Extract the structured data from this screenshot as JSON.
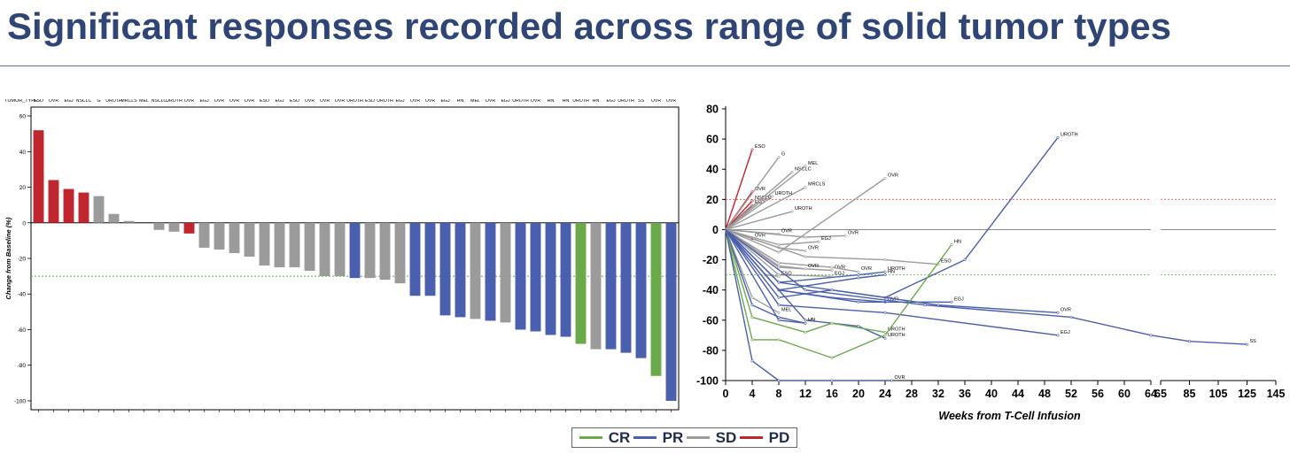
{
  "slide": {
    "title": "Significant responses recorded across range of solid tumor types"
  },
  "colors": {
    "CR": "#6aaa4a",
    "PR": "#4a5fae",
    "SD": "#9b9b9b",
    "PD": "#c0262e"
  },
  "legend": {
    "items": [
      {
        "key": "CR",
        "label": "CR"
      },
      {
        "key": "PR",
        "label": "PR"
      },
      {
        "key": "SD",
        "label": "SD"
      },
      {
        "key": "PD",
        "label": "PD"
      }
    ]
  },
  "chart_data": [
    {
      "type": "bar",
      "ylabel": "Change from Baseline (%)",
      "header_label": "TUMOR_TYPE",
      "ylim": [
        -105,
        65
      ],
      "yticks": [
        60,
        40,
        20,
        0,
        -20,
        -40,
        -60,
        -80,
        -100
      ],
      "reference_lines": [
        0,
        -30
      ],
      "categories": [
        "ESO",
        "OVR",
        "EGJ",
        "NSCLC",
        "G",
        "UROTH",
        "MRCLS",
        "MEL",
        "NSCLC",
        "UROTH",
        "OVR",
        "EGJ",
        "OVR",
        "OVR",
        "OVR",
        "ESO",
        "EGJ",
        "ESO",
        "OVR",
        "OVR",
        "OVR",
        "UROTH",
        "ESO",
        "UROTH",
        "EGJ",
        "OVR",
        "OVR",
        "EGJ",
        "HN",
        "MEL",
        "OVR",
        "EGJ",
        "UROTH",
        "OVR",
        "HN",
        "HN",
        "UROTH",
        "HN",
        "EGJ",
        "UROTH",
        "SS",
        "OVR",
        "OVR"
      ],
      "values": [
        52,
        24,
        19,
        17,
        15,
        5,
        1,
        0,
        -4,
        -5,
        -6,
        -14,
        -15,
        -17,
        -19,
        -24,
        -25,
        -25,
        -27,
        -30,
        -30,
        -31,
        -31,
        -32,
        -34,
        -41,
        -41,
        -52,
        -53,
        -54,
        -55,
        -56,
        -60,
        -61,
        -63,
        -64,
        -68,
        -71,
        -71,
        -73,
        -76,
        -86,
        -100
      ],
      "response": [
        "PD",
        "PD",
        "PD",
        "PD",
        "SD",
        "SD",
        "SD",
        "SD",
        "SD",
        "SD",
        "PD",
        "SD",
        "SD",
        "SD",
        "SD",
        "SD",
        "SD",
        "SD",
        "SD",
        "SD",
        "SD",
        "PR",
        "SD",
        "SD",
        "SD",
        "PR",
        "PR",
        "PR",
        "PR",
        "SD",
        "PR",
        "SD",
        "PR",
        "PR",
        "PR",
        "PR",
        "CR",
        "SD",
        "PR",
        "PR",
        "PR",
        "CR",
        "PR"
      ]
    },
    {
      "type": "line",
      "xlabel": "Weeks from T-Cell Infusion",
      "ylim": [
        -100,
        80
      ],
      "yticks": [
        80,
        60,
        40,
        20,
        0,
        -20,
        -40,
        -60,
        -80,
        -100
      ],
      "xticks_left": [
        0,
        4,
        8,
        12,
        16,
        20,
        24,
        28,
        32,
        36,
        40,
        44,
        48,
        52,
        56,
        60,
        64
      ],
      "xticks_right": [
        65,
        85,
        105,
        125,
        145
      ],
      "reference_lines": [
        20,
        0,
        -30
      ],
      "series": [
        {
          "label": "ESO",
          "response": "PD",
          "x": [
            0,
            4
          ],
          "y": [
            0,
            53
          ]
        },
        {
          "label": "OVR",
          "response": "PD",
          "x": [
            0,
            4
          ],
          "y": [
            0,
            25
          ]
        },
        {
          "label": "NSCLC",
          "response": "PD",
          "x": [
            0,
            4
          ],
          "y": [
            0,
            19
          ]
        },
        {
          "label": "EGJ",
          "response": "PD",
          "x": [
            0,
            4
          ],
          "y": [
            0,
            16
          ]
        },
        {
          "label": "OVR",
          "response": "PD",
          "x": [
            0,
            4
          ],
          "y": [
            0,
            -6
          ]
        },
        {
          "label": "G",
          "response": "SD",
          "x": [
            0,
            8
          ],
          "y": [
            0,
            48
          ]
        },
        {
          "label": "NSCLC",
          "response": "SD",
          "x": [
            0,
            10
          ],
          "y": [
            0,
            38
          ]
        },
        {
          "label": "MEL",
          "response": "SD",
          "x": [
            0,
            12
          ],
          "y": [
            0,
            42
          ]
        },
        {
          "label": "MRCLS",
          "response": "SD",
          "x": [
            0,
            12
          ],
          "y": [
            0,
            28
          ]
        },
        {
          "label": "UROTH",
          "response": "SD",
          "x": [
            0,
            7
          ],
          "y": [
            0,
            22
          ]
        },
        {
          "label": "UROTH",
          "response": "SD",
          "x": [
            0,
            10
          ],
          "y": [
            0,
            12
          ]
        },
        {
          "label": "OVR",
          "response": "SD",
          "x": [
            0,
            8,
            24
          ],
          "y": [
            0,
            -15,
            34
          ]
        },
        {
          "label": "OVR",
          "response": "SD",
          "x": [
            0,
            8
          ],
          "y": [
            0,
            -3
          ]
        },
        {
          "label": "OVR",
          "response": "SD",
          "x": [
            0,
            12,
            18
          ],
          "y": [
            0,
            -5,
            -4
          ]
        },
        {
          "label": "EGJ",
          "response": "SD",
          "x": [
            0,
            8,
            14
          ],
          "y": [
            0,
            -10,
            -8
          ]
        },
        {
          "label": "OVR",
          "response": "SD",
          "x": [
            0,
            8,
            12
          ],
          "y": [
            0,
            -12,
            -14
          ]
        },
        {
          "label": "ESO",
          "response": "SD",
          "x": [
            0,
            12,
            24,
            32
          ],
          "y": [
            0,
            -18,
            -20,
            -23
          ]
        },
        {
          "label": "OVR",
          "response": "SD",
          "x": [
            0,
            8,
            16
          ],
          "y": [
            0,
            -25,
            -27
          ]
        },
        {
          "label": "EGJ",
          "response": "SD",
          "x": [
            0,
            8,
            16
          ],
          "y": [
            0,
            -30,
            -31
          ]
        },
        {
          "label": "OVR",
          "response": "SD",
          "x": [
            0,
            8,
            16,
            20
          ],
          "y": [
            0,
            -22,
            -25,
            -28
          ]
        },
        {
          "label": "OVR",
          "response": "SD",
          "x": [
            0,
            8,
            12
          ],
          "y": [
            0,
            -24,
            -26
          ]
        },
        {
          "label": "ESO",
          "response": "SD",
          "x": [
            0,
            6,
            8
          ],
          "y": [
            0,
            -30,
            -31
          ]
        },
        {
          "label": "UROTH",
          "response": "PR",
          "x": [
            0,
            8,
            20,
            24
          ],
          "y": [
            0,
            -35,
            -30,
            -28
          ]
        },
        {
          "label": "HN",
          "response": "PR",
          "x": [
            0,
            8,
            20,
            24
          ],
          "y": [
            0,
            -40,
            -32,
            -30
          ]
        },
        {
          "label": "OVR",
          "response": "PR",
          "x": [
            0,
            8,
            16,
            24
          ],
          "y": [
            0,
            -40,
            -45,
            -48
          ]
        },
        {
          "label": "EGJ",
          "response": "PR",
          "x": [
            0,
            8,
            20,
            34
          ],
          "y": [
            0,
            -40,
            -48,
            -48
          ]
        },
        {
          "label": "UROTH",
          "response": "PR",
          "x": [
            0,
            8,
            24,
            36,
            50
          ],
          "y": [
            0,
            -35,
            -45,
            -20,
            61
          ]
        },
        {
          "label": "OVR",
          "response": "PR",
          "x": [
            0,
            8,
            16,
            32,
            50
          ],
          "y": [
            0,
            -45,
            -40,
            -50,
            -55
          ]
        },
        {
          "label": "EGJ",
          "response": "PR",
          "x": [
            0,
            8,
            24,
            50
          ],
          "y": [
            0,
            -50,
            -55,
            -70
          ]
        },
        {
          "label": "SS",
          "response": "PR",
          "x": [
            0,
            12,
            30,
            52,
            64,
            85,
            125
          ],
          "y": [
            0,
            -40,
            -50,
            -58,
            -70,
            -74,
            -76
          ]
        },
        {
          "label": "MEL",
          "response": "SD",
          "x": [
            0,
            4,
            8
          ],
          "y": [
            0,
            -45,
            -55
          ]
        },
        {
          "label": "HN",
          "response": "PR",
          "x": [
            0,
            8,
            12
          ],
          "y": [
            0,
            -60,
            -62
          ]
        },
        {
          "label": "HN",
          "response": "PR",
          "x": [
            0,
            4,
            8,
            12
          ],
          "y": [
            0,
            -50,
            -58,
            -62
          ]
        },
        {
          "label": "UROTH",
          "response": "PR",
          "x": [
            0,
            12,
            20,
            24
          ],
          "y": [
            0,
            -60,
            -64,
            -72
          ]
        },
        {
          "label": "UROTH",
          "response": "CR",
          "x": [
            0,
            4,
            12,
            16,
            24
          ],
          "y": [
            0,
            -58,
            -68,
            -62,
            -68
          ]
        },
        {
          "label": "HN",
          "response": "CR",
          "x": [
            0,
            4,
            8,
            16,
            24,
            34
          ],
          "y": [
            0,
            -73,
            -73,
            -85,
            -70,
            -10
          ]
        },
        {
          "label": "OVR",
          "response": "PR",
          "x": [
            0,
            4,
            8,
            16,
            25
          ],
          "y": [
            0,
            -87,
            -100,
            -100,
            -100
          ]
        }
      ]
    }
  ]
}
